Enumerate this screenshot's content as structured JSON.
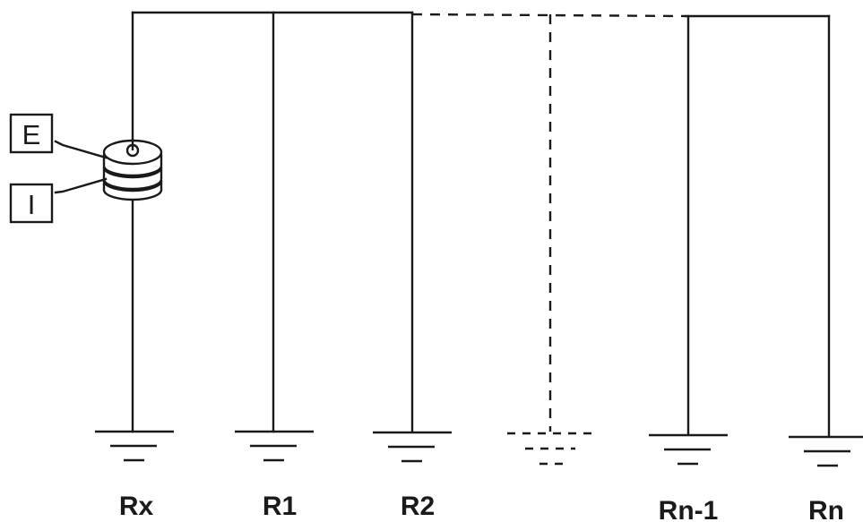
{
  "meter": {
    "terminal_top": "E",
    "terminal_bottom": "I"
  },
  "electrodes": [
    {
      "label": "Rx"
    },
    {
      "label": "R1"
    },
    {
      "label": "R2"
    },
    {
      "label": ""
    },
    {
      "label": "Rn-1"
    },
    {
      "label": "Rn"
    }
  ]
}
